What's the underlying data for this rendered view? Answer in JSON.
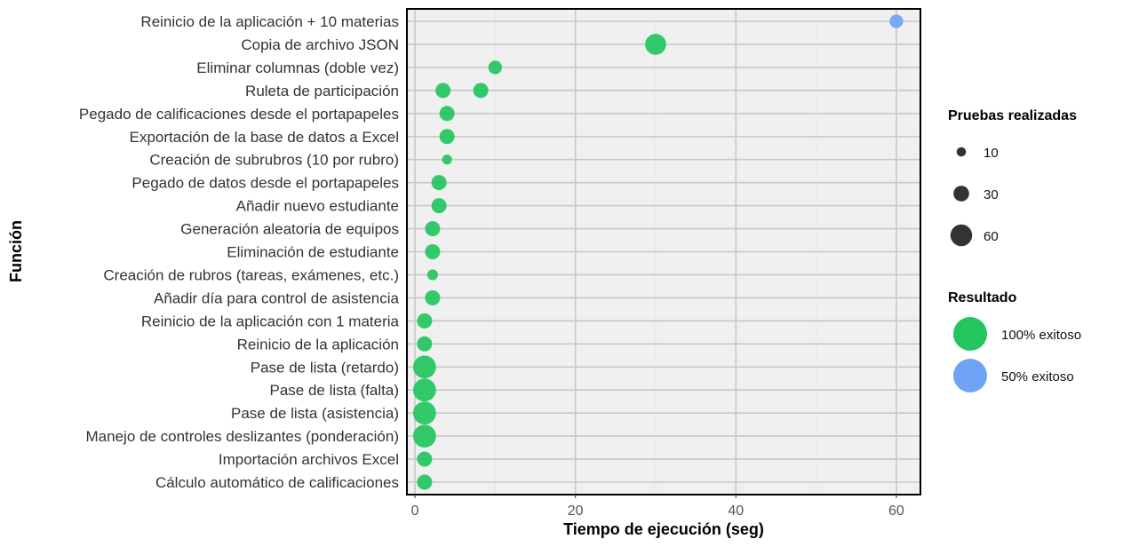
{
  "chart_data": {
    "type": "scatter",
    "xlabel": "Tiempo de ejecución (seg)",
    "ylabel": "Función",
    "xlim": [
      -1,
      63
    ],
    "xticks": [
      "0",
      "20",
      "40",
      "60"
    ],
    "grid": true,
    "categories": [
      "Reinicio de la aplicación + 10 materias",
      "Copia de archivo JSON",
      "Eliminar columnas (doble vez)",
      "Ruleta de participación",
      "Pegado de calificaciones desde el portapapeles",
      "Exportación de la base de datos a Excel",
      "Creación de subrubros (10 por rubro)",
      "Pegado de datos desde el portapapeles",
      "Añadir nuevo estudiante",
      "Generación aleatoria de equipos",
      "Eliminación de estudiante",
      "Creación de rubros (tareas, exámenes, etc.)",
      "Añadir día para control de asistencia",
      "Reinicio de la aplicación con 1 materia",
      "Reinicio de la aplicación",
      "Pase de lista (retardo)",
      "Pase de lista (falta)",
      "Pase de lista (asistencia)",
      "Manejo de controles deslizantes (ponderación)",
      "Importación archivos Excel",
      "Cálculo automático de calificaciones"
    ],
    "points": [
      {
        "category": "Reinicio de la aplicación + 10 materias",
        "x": 60,
        "pruebas": 20,
        "resultado": "50% exitoso"
      },
      {
        "category": "Copia de archivo JSON",
        "x": 30,
        "pruebas": 50,
        "resultado": "100% exitoso"
      },
      {
        "category": "Eliminar columnas (doble vez)",
        "x": 10,
        "pruebas": 20,
        "resultado": "100% exitoso"
      },
      {
        "category": "Ruleta de participación",
        "x": 3.5,
        "pruebas": 25,
        "resultado": "100% exitoso"
      },
      {
        "category": "Ruleta de participación",
        "x": 8.2,
        "pruebas": 25,
        "resultado": "100% exitoso"
      },
      {
        "category": "Pegado de calificaciones desde el portapapeles",
        "x": 4,
        "pruebas": 25,
        "resultado": "100% exitoso"
      },
      {
        "category": "Exportación de la base de datos a Excel",
        "x": 4,
        "pruebas": 25,
        "resultado": "100% exitoso"
      },
      {
        "category": "Creación de subrubros (10 por rubro)",
        "x": 4,
        "pruebas": 10,
        "resultado": "100% exitoso"
      },
      {
        "category": "Pegado de datos desde el portapapeles",
        "x": 3,
        "pruebas": 25,
        "resultado": "100% exitoso"
      },
      {
        "category": "Añadir nuevo estudiante",
        "x": 3,
        "pruebas": 25,
        "resultado": "100% exitoso"
      },
      {
        "category": "Generación aleatoria de equipos",
        "x": 2.2,
        "pruebas": 25,
        "resultado": "100% exitoso"
      },
      {
        "category": "Eliminación de estudiante",
        "x": 2.2,
        "pruebas": 25,
        "resultado": "100% exitoso"
      },
      {
        "category": "Creación de rubros (tareas, exámenes, etc.)",
        "x": 2.2,
        "pruebas": 12,
        "resultado": "100% exitoso"
      },
      {
        "category": "Añadir día para control de asistencia",
        "x": 2.2,
        "pruebas": 25,
        "resultado": "100% exitoso"
      },
      {
        "category": "Reinicio de la aplicación con 1 materia",
        "x": 1.2,
        "pruebas": 25,
        "resultado": "100% exitoso"
      },
      {
        "category": "Reinicio de la aplicación",
        "x": 1.2,
        "pruebas": 25,
        "resultado": "100% exitoso"
      },
      {
        "category": "Pase de lista (retardo)",
        "x": 1.2,
        "pruebas": 60,
        "resultado": "100% exitoso"
      },
      {
        "category": "Pase de lista (falta)",
        "x": 1.2,
        "pruebas": 60,
        "resultado": "100% exitoso"
      },
      {
        "category": "Pase de lista (asistencia)",
        "x": 1.2,
        "pruebas": 60,
        "resultado": "100% exitoso"
      },
      {
        "category": "Manejo de controles deslizantes (ponderación)",
        "x": 1.2,
        "pruebas": 60,
        "resultado": "100% exitoso"
      },
      {
        "category": "Importación archivos Excel",
        "x": 1.2,
        "pruebas": 25,
        "resultado": "100% exitoso"
      },
      {
        "category": "Cálculo automático de calificaciones",
        "x": 1.2,
        "pruebas": 25,
        "resultado": "100% exitoso"
      }
    ],
    "legend": {
      "placement": "right",
      "size_title": "Pruebas realizadas",
      "size_entries": [
        {
          "label": "10",
          "value": 10
        },
        {
          "label": "30",
          "value": 30
        },
        {
          "label": "60",
          "value": 60
        }
      ],
      "color_title": "Resultado",
      "color_entries": [
        {
          "label": "100% exitoso",
          "color": "#22c55e"
        },
        {
          "label": "50% exitoso",
          "color": "#6ea3f5"
        }
      ]
    }
  }
}
